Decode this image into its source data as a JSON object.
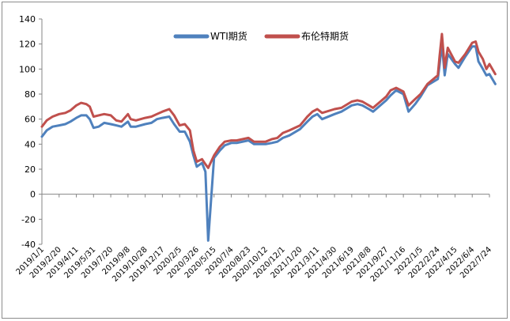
{
  "chart_data": {
    "type": "line",
    "title": "",
    "xlabel": "",
    "ylabel": "",
    "ylim": [
      -40,
      140
    ],
    "yticks": [
      -40,
      -20,
      0,
      20,
      40,
      60,
      80,
      100,
      120,
      140
    ],
    "grid": false,
    "legend_position": "top-center",
    "x_tick_labels": [
      "2019/1/1",
      "2019/2/20",
      "2019/4/11",
      "2019/5/31",
      "2019/7/20",
      "2019/9/8",
      "2019/10/28",
      "2019/12/17",
      "2020/2/5",
      "2020/3/26",
      "2020/5/15",
      "2020/7/4",
      "2020/8/23",
      "2020/10/12",
      "2020/12/1",
      "2021/1/20",
      "2021/3/11",
      "2021/4/30",
      "2021/6/19",
      "2021/8/8",
      "2021/9/27",
      "2021/11/16",
      "2022/1/5",
      "2022/2/24",
      "2022/4/15",
      "2022/6/4",
      "2022/7/24"
    ],
    "x": [
      "2019/1/1",
      "2019/1/15",
      "2019/2/1",
      "2019/2/20",
      "2019/3/10",
      "2019/3/25",
      "2019/4/11",
      "2019/4/25",
      "2019/5/10",
      "2019/5/20",
      "2019/5/31",
      "2019/6/15",
      "2019/7/1",
      "2019/7/20",
      "2019/8/5",
      "2019/8/20",
      "2019/9/8",
      "2019/9/16",
      "2019/10/1",
      "2019/10/28",
      "2019/11/15",
      "2019/12/1",
      "2019/12/17",
      "2020/1/6",
      "2020/1/20",
      "2020/2/5",
      "2020/2/20",
      "2020/3/6",
      "2020/3/16",
      "2020/3/26",
      "2020/4/10",
      "2020/4/20",
      "2020/4/28",
      "2020/5/15",
      "2020/6/1",
      "2020/6/15",
      "2020/7/4",
      "2020/7/20",
      "2020/8/23",
      "2020/9/8",
      "2020/9/20",
      "2020/10/12",
      "2020/10/30",
      "2020/11/15",
      "2020/12/1",
      "2020/12/20",
      "2021/1/20",
      "2021/2/10",
      "2021/2/25",
      "2021/3/11",
      "2021/3/25",
      "2021/4/30",
      "2021/5/20",
      "2021/6/19",
      "2021/7/6",
      "2021/7/20",
      "2021/8/8",
      "2021/8/20",
      "2021/9/27",
      "2021/10/10",
      "2021/10/26",
      "2021/11/16",
      "2021/12/1",
      "2021/12/20",
      "2022/1/5",
      "2022/1/25",
      "2022/2/24",
      "2022/3/1",
      "2022/3/8",
      "2022/3/16",
      "2022/3/25",
      "2022/4/15",
      "2022/4/25",
      "2022/5/15",
      "2022/6/4",
      "2022/6/14",
      "2022/6/22",
      "2022/7/5",
      "2022/7/15",
      "2022/7/24",
      "2022/8/10"
    ],
    "series": [
      {
        "name": "WTI期货",
        "color": "#4f81bd",
        "values": [
          46,
          51,
          54,
          55,
          56,
          58,
          61,
          63,
          63,
          60,
          53,
          54,
          57,
          56,
          55,
          54,
          58,
          54,
          54,
          56,
          57,
          60,
          61,
          62,
          56,
          50,
          50,
          42,
          31,
          22,
          25,
          18,
          -37,
          29,
          35,
          39,
          41,
          41,
          43,
          40,
          40,
          40,
          41,
          42,
          45,
          47,
          52,
          58,
          62,
          64,
          60,
          64,
          66,
          71,
          72,
          71,
          68,
          66,
          75,
          79,
          83,
          80,
          66,
          72,
          78,
          87,
          92,
          103,
          120,
          95,
          112,
          104,
          101,
          110,
          118,
          118,
          106,
          100,
          95,
          96,
          88
        ]
      },
      {
        "name": "布伦特期货",
        "color": "#c0504d",
        "values": [
          54,
          59,
          62,
          64,
          65,
          67,
          71,
          73,
          72,
          70,
          62,
          63,
          64,
          63,
          59,
          58,
          64,
          60,
          59,
          61,
          62,
          64,
          66,
          68,
          63,
          55,
          56,
          51,
          35,
          26,
          28,
          24,
          21,
          31,
          38,
          42,
          43,
          43,
          45,
          42,
          42,
          42,
          44,
          45,
          49,
          51,
          55,
          62,
          66,
          68,
          65,
          68,
          69,
          74,
          75,
          74,
          71,
          69,
          78,
          83,
          85,
          82,
          71,
          76,
          80,
          88,
          95,
          110,
          128,
          101,
          117,
          106,
          105,
          112,
          121,
          122,
          114,
          108,
          100,
          104,
          96
        ]
      }
    ]
  }
}
